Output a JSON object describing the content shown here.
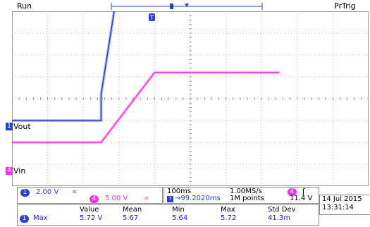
{
  "status": {
    "run": "Run",
    "trigger_state": "PrTrig"
  },
  "markers": {
    "trigger_position": "T"
  },
  "channels": [
    {
      "id": "1",
      "label": "Vout",
      "color": "#2b3fc8",
      "scale": "2.00 V",
      "coupling": "∝"
    },
    {
      "id": "4",
      "label": "Vin",
      "color": "#f032e6",
      "scale": "5.00 V",
      "coupling": "∝"
    }
  ],
  "timebase": {
    "time_per_div": "100ms",
    "sample_rate": "1.00MS/s",
    "position": "→99.2020ms",
    "record_length": "1M points",
    "position_icon": "T"
  },
  "trigger": {
    "source": "4",
    "slope_icon": "rising-edge-icon",
    "slope_glyph": "ʃ",
    "level": "11.4 V"
  },
  "measurement": {
    "headers": [
      "Value",
      "Mean",
      "Min",
      "Max",
      "Std Dev"
    ],
    "rows": [
      {
        "channel": "1",
        "type": "Max",
        "values": [
          "5.72 V",
          "5.67",
          "5.64",
          "5.72",
          "41.3m"
        ]
      }
    ]
  },
  "datetime": {
    "date": "14 Jul  2015",
    "time": "13:31:14"
  },
  "chart_data": {
    "type": "line",
    "x_unit": "s",
    "series": [
      {
        "name": "Vout",
        "x": [
          -0.25,
          0.0,
          0.0,
          0.05,
          0.5
        ],
        "y": [
          -0.5,
          -0.5,
          0.1,
          2.7,
          2.55
        ]
      },
      {
        "name": "Vin",
        "x": [
          -0.25,
          0.0,
          0.15,
          0.5
        ],
        "y": [
          -1.0,
          -1.0,
          0.6,
          0.6
        ]
      }
    ]
  }
}
